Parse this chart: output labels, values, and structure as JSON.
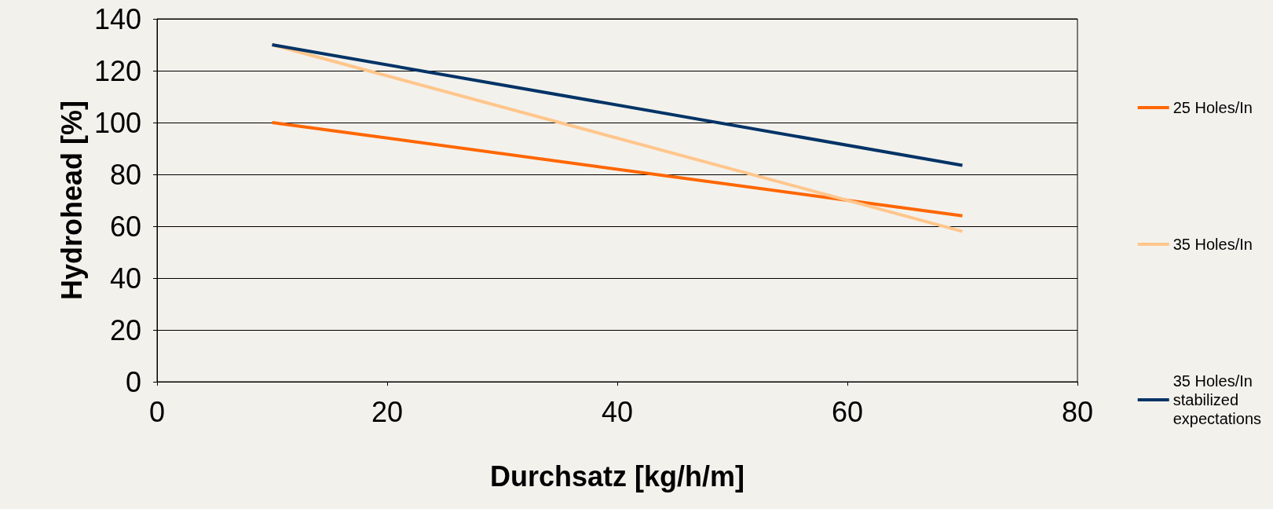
{
  "chart_data": {
    "type": "line",
    "xlabel": "Durchsatz [kg/h/m]",
    "ylabel": "Hydrohead [%]",
    "xlim": [
      0,
      80
    ],
    "xticks": [
      0,
      20,
      40,
      60,
      80
    ],
    "ylim": [
      0,
      140
    ],
    "yticks": [
      0,
      20,
      40,
      60,
      80,
      100,
      120,
      140
    ],
    "grid": "y",
    "legend": "right",
    "marker": "none",
    "line_style": "solid",
    "x": [
      10,
      70
    ],
    "series": [
      {
        "name": "25 Holes/In",
        "color": "#ff6600",
        "values": [
          100,
          64
        ]
      },
      {
        "name": "35 Holes/In",
        "color": "#ffc68c",
        "values": [
          130,
          58
        ]
      },
      {
        "name": "35 Holes/In\nstabilized\nexpectations",
        "color": "#003366",
        "values": [
          130,
          83.5
        ]
      }
    ]
  }
}
